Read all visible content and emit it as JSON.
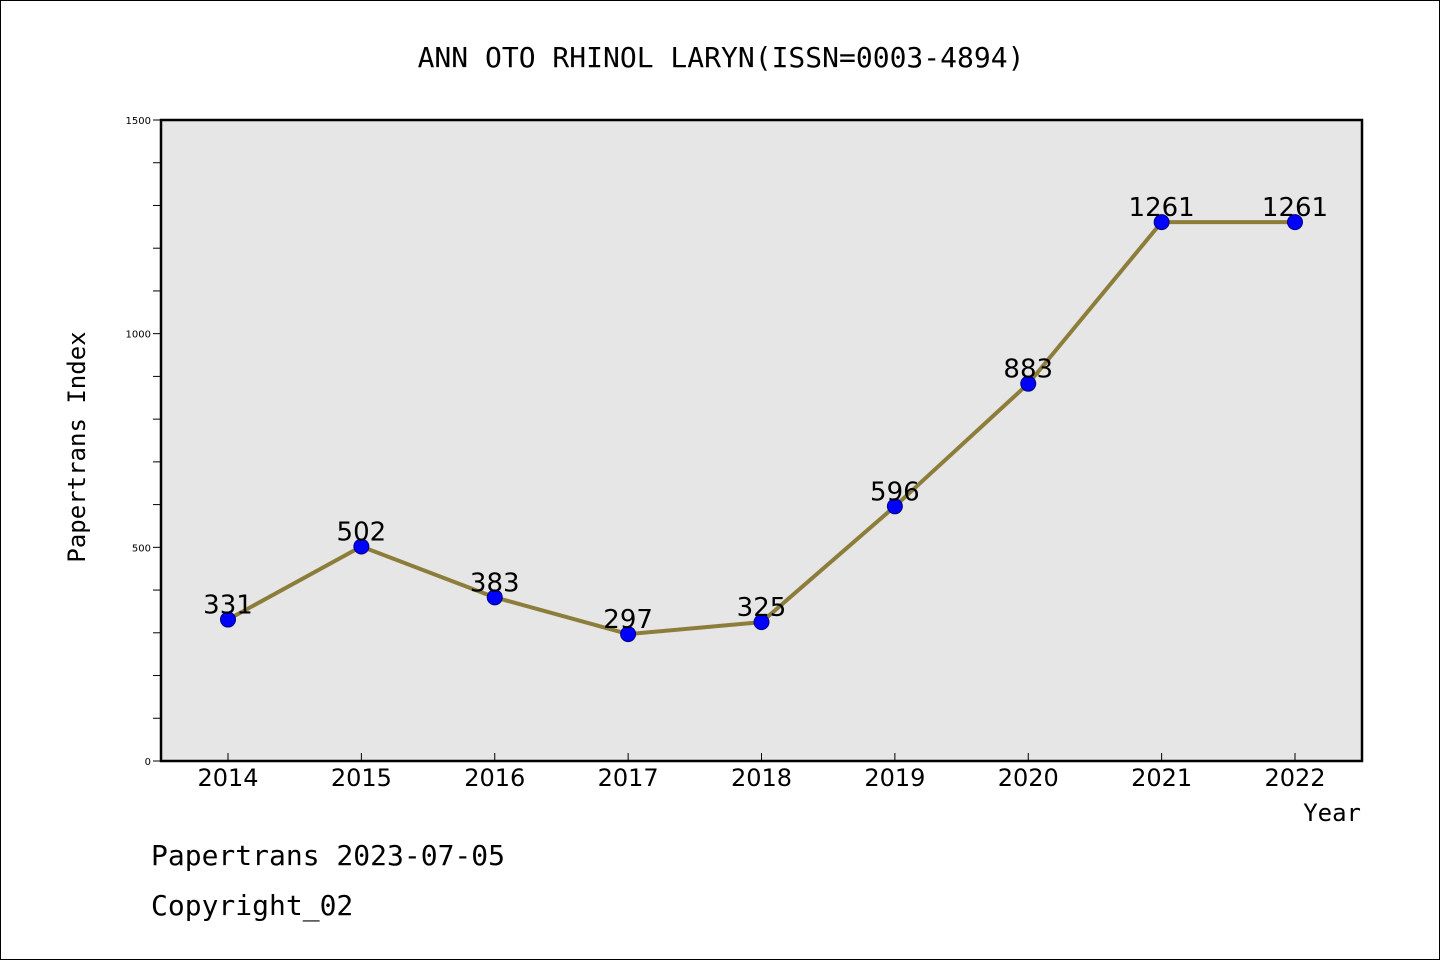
{
  "footer": {
    "line1": "Papertrans 2023-07-05",
    "line2": "Copyright_02"
  },
  "chart_data": {
    "type": "line",
    "title": "ANN OTO RHINOL LARYN(ISSN=0003-4894)",
    "xlabel": "Year",
    "ylabel": "Papertrans Index",
    "categories": [
      "2014",
      "2015",
      "2016",
      "2017",
      "2018",
      "2019",
      "2020",
      "2021",
      "2022"
    ],
    "values": [
      331,
      502,
      383,
      297,
      325,
      596,
      883,
      1261,
      1261
    ],
    "data_labels": [
      "331",
      "502",
      "383",
      "297",
      "325",
      "596",
      "883",
      "1261",
      "1261"
    ],
    "ylim": [
      0,
      1500
    ],
    "yticks": [
      0,
      500,
      1000,
      1500
    ],
    "yticks_minor_step": 100,
    "grid": false,
    "legend": "none",
    "colors": {
      "line": "#8c7d3a",
      "marker": "#0000ff",
      "plot_background": "#e6e6e6"
    }
  }
}
